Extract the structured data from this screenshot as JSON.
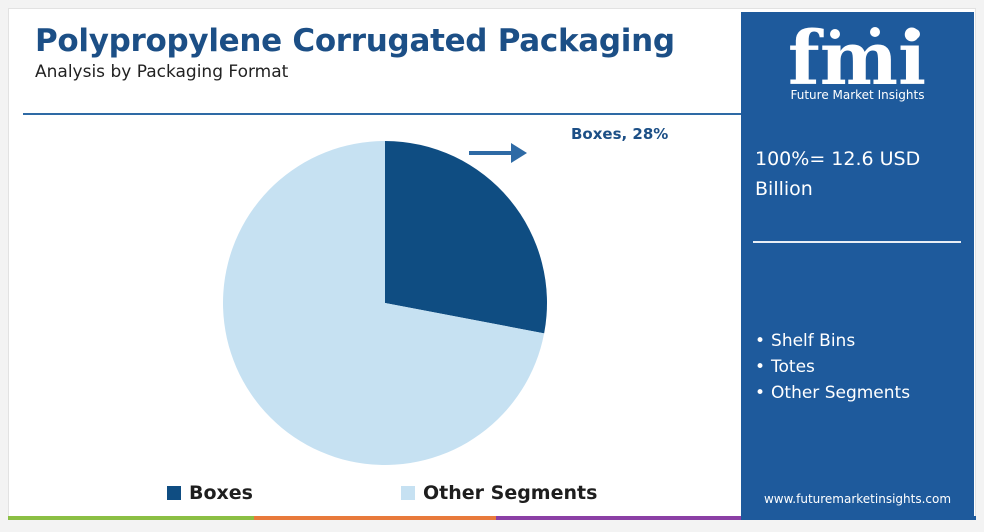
{
  "colors": {
    "accent": "#1c4f86",
    "sidebar": "#1e5a9c",
    "boxes": "#0f4d82",
    "other": "#c6e1f2",
    "bar_colors": [
      "#8bbf44",
      "#e87a3b",
      "#8b3fa5",
      "#1e5a9c"
    ]
  },
  "chart_data": {
    "type": "pie",
    "title": "Polypropylene Corrugated Packaging",
    "subtitle": "Analysis by Packaging Format",
    "slices": [
      {
        "label": "Boxes",
        "value": 28
      },
      {
        "label": "Other Segments",
        "value": 72
      }
    ],
    "callout": "Boxes, 28%",
    "legend": {
      "position": "bottom",
      "entries": [
        "Boxes",
        "Other Segments"
      ]
    }
  },
  "sidebar": {
    "logo_text": "fmi",
    "tagline": "Future Market Insights",
    "total_line1": "100%= 12.6 USD",
    "total_line2": "Billion",
    "segments": [
      "Shelf Bins",
      "Totes",
      "Other Segments"
    ],
    "website": "www.futuremarketinsights.com"
  }
}
